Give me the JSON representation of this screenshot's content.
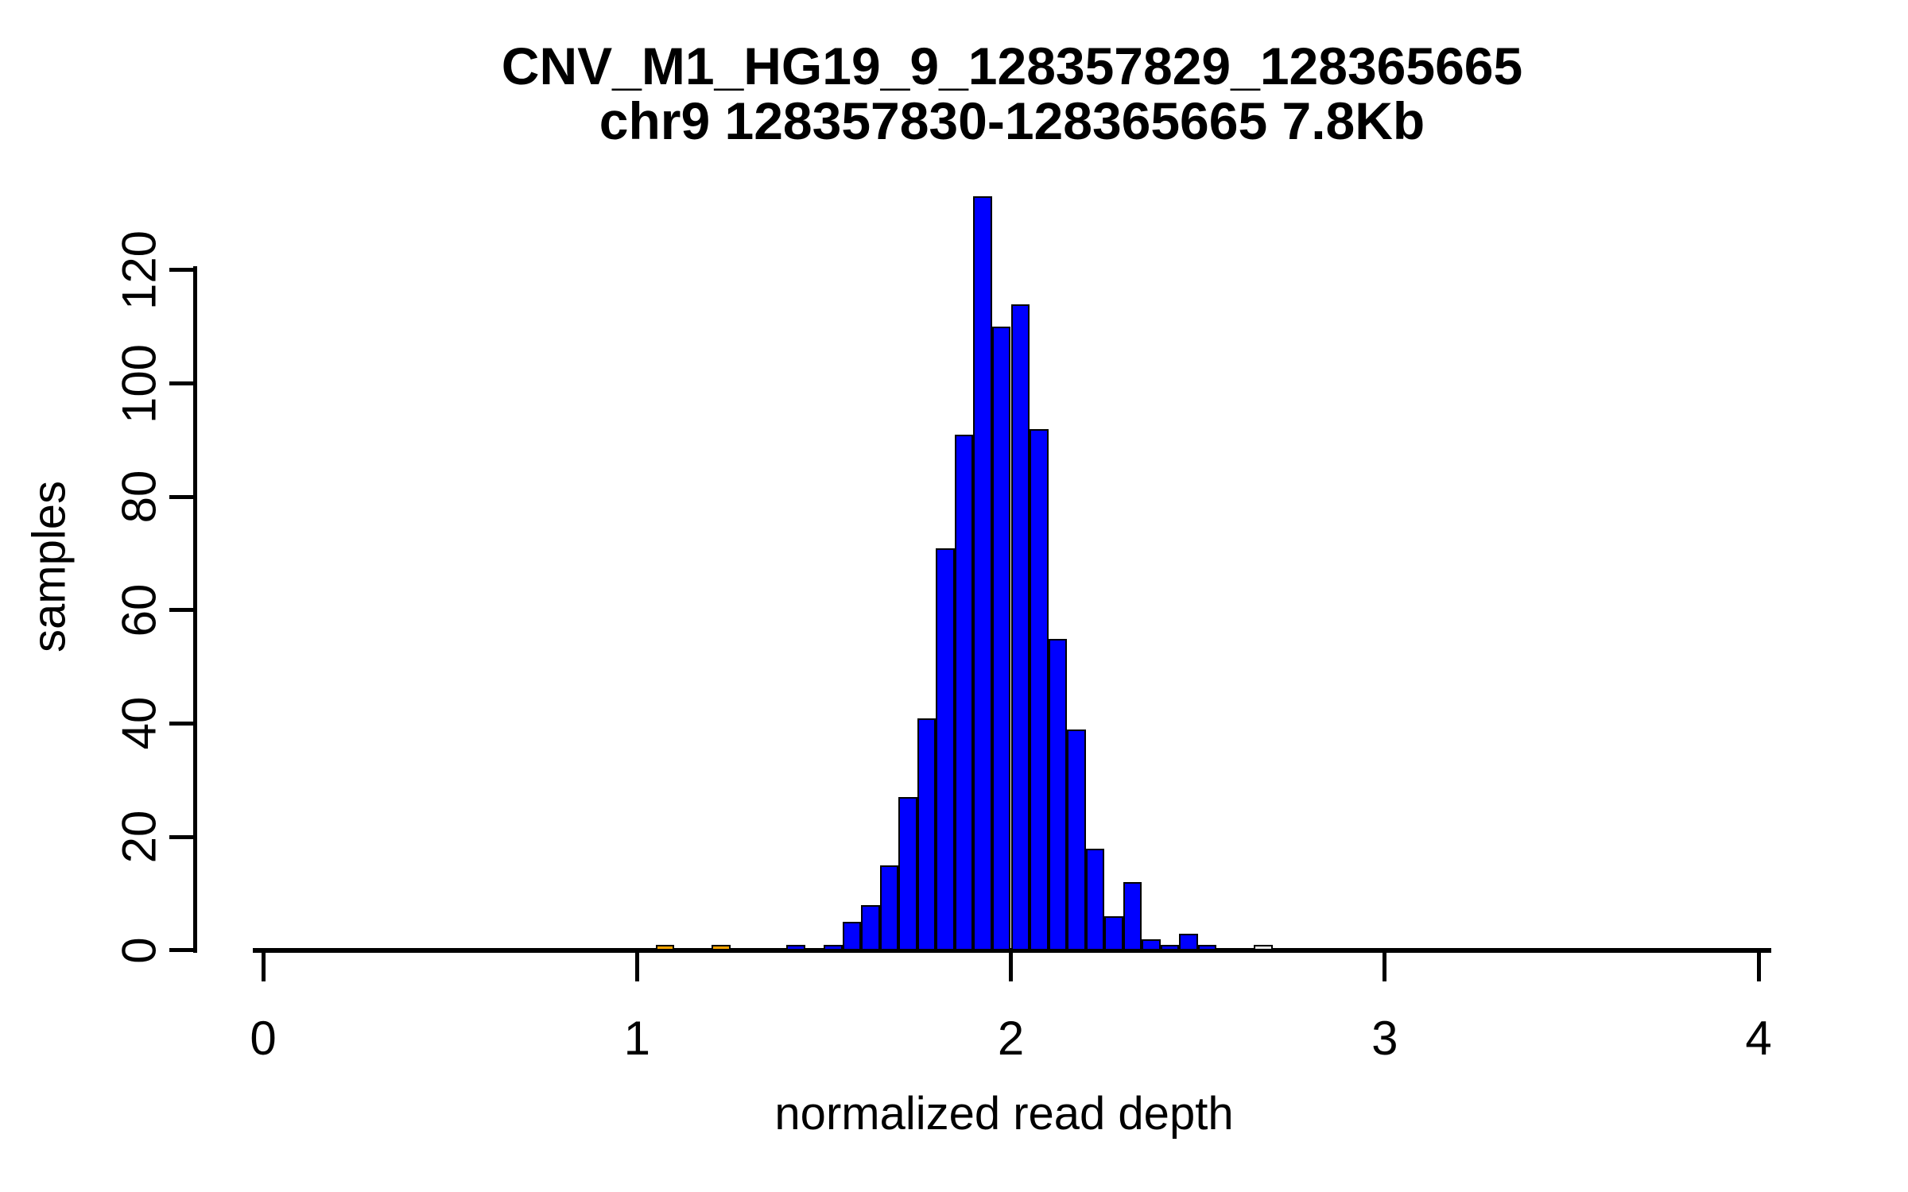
{
  "title": {
    "line1": "CNV_M1_HG19_9_128357829_128365665",
    "line2": "chr9 128357830-128365665 7.8Kb"
  },
  "axes": {
    "x": {
      "label": "normalized read depth",
      "ticks": [
        0,
        1,
        2,
        3,
        4
      ],
      "range": [
        0,
        4
      ]
    },
    "y": {
      "label": "samples",
      "ticks": [
        0,
        20,
        40,
        60,
        80,
        100,
        120
      ],
      "range": [
        0,
        135
      ]
    }
  },
  "chart_data": {
    "type": "bar",
    "subtype": "histogram",
    "title": "CNV_M1_HG19_9_128357829_128365665 / chr9 128357830-128365665 7.8Kb",
    "xlabel": "normalized read depth",
    "ylabel": "samples",
    "xlim": [
      0,
      4
    ],
    "ylim": [
      0,
      135
    ],
    "grid": false,
    "legend": "none",
    "bin_width": 0.05,
    "colors": {
      "main_fill": "#0000ff",
      "low_outlier_fill": "#ffa500",
      "high_outlier_fill": "#e8e8e8",
      "border": "#000000"
    },
    "bins": [
      {
        "x0": 1.05,
        "x1": 1.1,
        "count": 1,
        "fill": "#ffa500"
      },
      {
        "x0": 1.2,
        "x1": 1.25,
        "count": 1,
        "fill": "#ffa500"
      },
      {
        "x0": 1.4,
        "x1": 1.45,
        "count": 1,
        "fill": "#0000ff"
      },
      {
        "x0": 1.5,
        "x1": 1.55,
        "count": 1,
        "fill": "#0000ff"
      },
      {
        "x0": 1.55,
        "x1": 1.6,
        "count": 5,
        "fill": "#0000ff"
      },
      {
        "x0": 1.6,
        "x1": 1.65,
        "count": 8,
        "fill": "#0000ff"
      },
      {
        "x0": 1.65,
        "x1": 1.7,
        "count": 15,
        "fill": "#0000ff"
      },
      {
        "x0": 1.7,
        "x1": 1.75,
        "count": 27,
        "fill": "#0000ff"
      },
      {
        "x0": 1.75,
        "x1": 1.8,
        "count": 41,
        "fill": "#0000ff"
      },
      {
        "x0": 1.8,
        "x1": 1.85,
        "count": 71,
        "fill": "#0000ff"
      },
      {
        "x0": 1.85,
        "x1": 1.9,
        "count": 91,
        "fill": "#0000ff"
      },
      {
        "x0": 1.9,
        "x1": 1.95,
        "count": 133,
        "fill": "#0000ff"
      },
      {
        "x0": 1.95,
        "x1": 2.0,
        "count": 110,
        "fill": "#0000ff"
      },
      {
        "x0": 2.0,
        "x1": 2.05,
        "count": 114,
        "fill": "#0000ff"
      },
      {
        "x0": 2.05,
        "x1": 2.1,
        "count": 92,
        "fill": "#0000ff"
      },
      {
        "x0": 2.1,
        "x1": 2.15,
        "count": 55,
        "fill": "#0000ff"
      },
      {
        "x0": 2.15,
        "x1": 2.2,
        "count": 39,
        "fill": "#0000ff"
      },
      {
        "x0": 2.2,
        "x1": 2.25,
        "count": 18,
        "fill": "#0000ff"
      },
      {
        "x0": 2.25,
        "x1": 2.3,
        "count": 6,
        "fill": "#0000ff"
      },
      {
        "x0": 2.3,
        "x1": 2.35,
        "count": 12,
        "fill": "#0000ff"
      },
      {
        "x0": 2.35,
        "x1": 2.4,
        "count": 2,
        "fill": "#0000ff"
      },
      {
        "x0": 2.4,
        "x1": 2.45,
        "count": 1,
        "fill": "#0000ff"
      },
      {
        "x0": 2.45,
        "x1": 2.5,
        "count": 3,
        "fill": "#0000ff"
      },
      {
        "x0": 2.5,
        "x1": 2.55,
        "count": 1,
        "fill": "#0000ff"
      },
      {
        "x0": 2.65,
        "x1": 2.7,
        "count": 1,
        "fill": "#e8e8e8"
      }
    ]
  }
}
